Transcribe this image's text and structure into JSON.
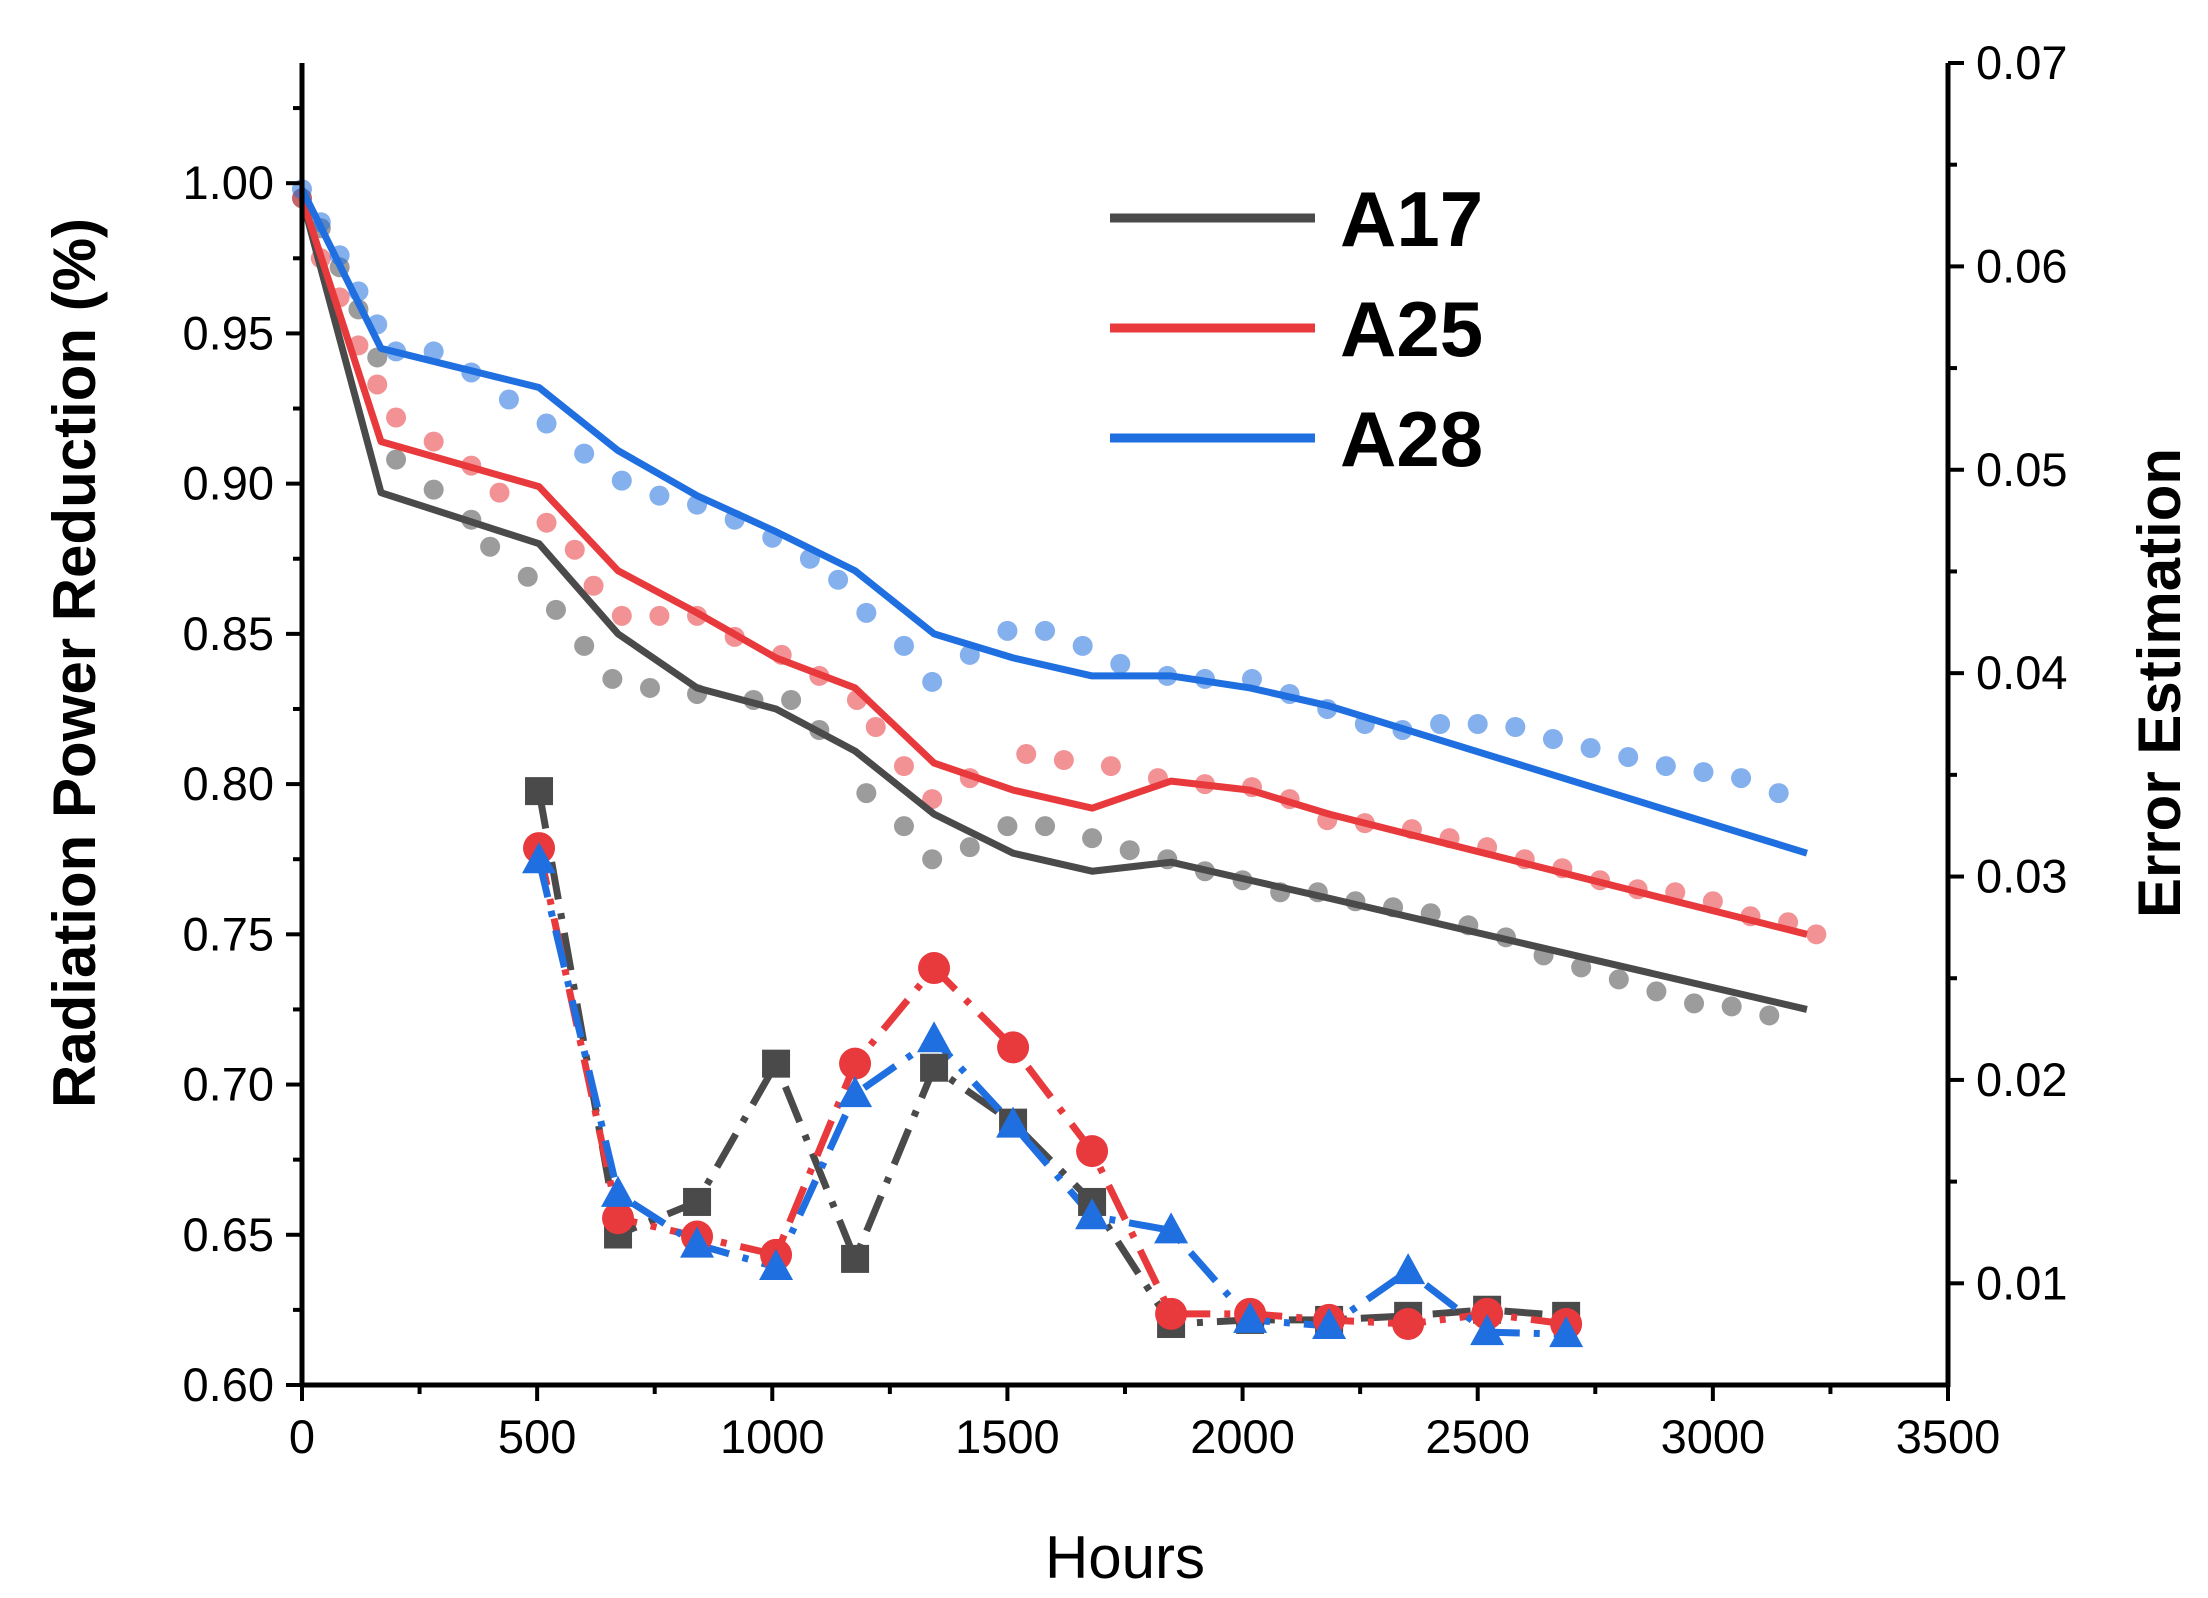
{
  "chart_data": {
    "type": "line",
    "title": "",
    "xlabel": "Hours",
    "ylabel": "Radiation Power Reduction (%)",
    "y2label": "Error Estimation",
    "xlim": [
      0,
      3500
    ],
    "ylim": [
      0.6,
      1.04
    ],
    "y2lim": [
      0.005,
      0.07
    ],
    "x_ticks": [
      "0",
      "500",
      "1000",
      "1500",
      "2000",
      "2500",
      "3000",
      "3500"
    ],
    "y_ticks": [
      "0.60",
      "0.65",
      "0.70",
      "0.75",
      "0.80",
      "0.85",
      "0.90",
      "0.95",
      "1.00"
    ],
    "y2_ticks": [
      "0.01",
      "0.02",
      "0.03",
      "0.04",
      "0.05",
      "0.06",
      "0.07"
    ],
    "legend": {
      "placement": "top-center",
      "entries": [
        {
          "label": "A17",
          "color": "#4a4a4a"
        },
        {
          "label": "A25",
          "color": "#e8393c"
        },
        {
          "label": "A28",
          "color": "#1f6fe0"
        }
      ]
    },
    "fit_series": [
      {
        "name": "A17",
        "color": "#4a4a4a",
        "x": [
          0,
          168,
          504,
          672,
          840,
          1008,
          1176,
          1344,
          1512,
          1680,
          1848,
          2016,
          2184,
          3200
        ],
        "y": [
          0.995,
          0.897,
          0.88,
          0.85,
          0.832,
          0.825,
          0.811,
          0.79,
          0.777,
          0.771,
          0.774,
          0.768,
          0.762,
          0.725
        ]
      },
      {
        "name": "A25",
        "color": "#e8393c",
        "x": [
          0,
          168,
          504,
          672,
          840,
          1008,
          1176,
          1344,
          1512,
          1680,
          1848,
          2016,
          2184,
          3200
        ],
        "y": [
          0.995,
          0.914,
          0.899,
          0.871,
          0.857,
          0.842,
          0.832,
          0.807,
          0.798,
          0.792,
          0.801,
          0.798,
          0.79,
          0.75
        ]
      },
      {
        "name": "A28",
        "color": "#1f6fe0",
        "x": [
          0,
          168,
          504,
          672,
          840,
          1008,
          1176,
          1344,
          1512,
          1680,
          1848,
          2016,
          2184,
          3200
        ],
        "y": [
          0.998,
          0.945,
          0.932,
          0.911,
          0.896,
          0.884,
          0.871,
          0.85,
          0.842,
          0.836,
          0.836,
          0.832,
          0.826,
          0.777
        ]
      }
    ],
    "measured_series": [
      {
        "name": "A17",
        "color": "#4a4a4a",
        "x": [
          0,
          40,
          80,
          120,
          160,
          200,
          280,
          360,
          400,
          480,
          540,
          600,
          660,
          740,
          840,
          960,
          1040,
          1100,
          1200,
          1280,
          1340,
          1420,
          1500,
          1580,
          1680,
          1760,
          1840,
          1920,
          2000,
          2080,
          2160,
          2240,
          2320,
          2400,
          2480,
          2560,
          2640,
          2720,
          2800,
          2880,
          2960,
          3040,
          3120
        ],
        "y": [
          0.995,
          0.985,
          0.972,
          0.958,
          0.942,
          0.908,
          0.898,
          0.888,
          0.879,
          0.869,
          0.858,
          0.846,
          0.835,
          0.832,
          0.83,
          0.828,
          0.828,
          0.818,
          0.797,
          0.786,
          0.775,
          0.779,
          0.786,
          0.786,
          0.782,
          0.778,
          0.775,
          0.771,
          0.768,
          0.764,
          0.764,
          0.761,
          0.759,
          0.757,
          0.753,
          0.749,
          0.743,
          0.739,
          0.735,
          0.731,
          0.727,
          0.726,
          0.723
        ]
      },
      {
        "name": "A25",
        "color": "#e8393c",
        "x": [
          0,
          40,
          80,
          120,
          160,
          200,
          280,
          360,
          420,
          520,
          580,
          620,
          680,
          760,
          840,
          920,
          1020,
          1100,
          1180,
          1220,
          1280,
          1340,
          1420,
          1540,
          1620,
          1720,
          1820,
          1920,
          2020,
          2100,
          2180,
          2260,
          2360,
          2440,
          2520,
          2600,
          2680,
          2760,
          2840,
          2920,
          3000,
          3080,
          3160,
          3220
        ],
        "y": [
          0.995,
          0.975,
          0.962,
          0.946,
          0.933,
          0.922,
          0.914,
          0.906,
          0.897,
          0.887,
          0.878,
          0.866,
          0.856,
          0.856,
          0.856,
          0.849,
          0.843,
          0.836,
          0.828,
          0.819,
          0.806,
          0.795,
          0.802,
          0.81,
          0.808,
          0.806,
          0.802,
          0.8,
          0.799,
          0.795,
          0.788,
          0.787,
          0.785,
          0.782,
          0.779,
          0.775,
          0.772,
          0.768,
          0.765,
          0.764,
          0.761,
          0.756,
          0.754,
          0.75
        ]
      },
      {
        "name": "A28",
        "color": "#1f6fe0",
        "x": [
          0,
          40,
          80,
          120,
          160,
          200,
          280,
          360,
          440,
          520,
          600,
          680,
          760,
          840,
          920,
          1000,
          1080,
          1140,
          1200,
          1280,
          1340,
          1420,
          1500,
          1580,
          1660,
          1740,
          1840,
          1920,
          2020,
          2100,
          2180,
          2260,
          2340,
          2420,
          2500,
          2580,
          2660,
          2740,
          2820,
          2900,
          2980,
          3060,
          3140
        ],
        "y": [
          0.998,
          0.987,
          0.976,
          0.964,
          0.953,
          0.944,
          0.944,
          0.937,
          0.928,
          0.92,
          0.91,
          0.901,
          0.896,
          0.893,
          0.888,
          0.882,
          0.875,
          0.868,
          0.857,
          0.846,
          0.834,
          0.843,
          0.851,
          0.851,
          0.846,
          0.84,
          0.836,
          0.835,
          0.835,
          0.83,
          0.825,
          0.82,
          0.818,
          0.82,
          0.82,
          0.819,
          0.815,
          0.812,
          0.809,
          0.806,
          0.804,
          0.802,
          0.797
        ]
      }
    ],
    "error_series": [
      {
        "name": "A17",
        "color": "#4a4a4a",
        "marker": "square",
        "x": [
          504,
          672,
          840,
          1008,
          1176,
          1344,
          1512,
          1680,
          1848,
          2016,
          2184,
          2352,
          2520,
          2688
        ],
        "y": [
          0.0342,
          0.0124,
          0.014,
          0.0208,
          0.0112,
          0.0206,
          0.0179,
          0.014,
          0.008,
          0.0082,
          0.0082,
          0.0084,
          0.0087,
          0.0084
        ]
      },
      {
        "name": "A25",
        "color": "#e8393c",
        "marker": "circle",
        "x": [
          504,
          672,
          840,
          1008,
          1176,
          1344,
          1512,
          1680,
          1848,
          2016,
          2184,
          2352,
          2520,
          2688
        ],
        "y": [
          0.0314,
          0.0132,
          0.0123,
          0.0114,
          0.0208,
          0.0255,
          0.0216,
          0.0165,
          0.0085,
          0.0085,
          0.0082,
          0.008,
          0.0085,
          0.008
        ]
      },
      {
        "name": "A28",
        "color": "#1f6fe0",
        "marker": "triangle",
        "x": [
          504,
          672,
          840,
          1008,
          1176,
          1344,
          1512,
          1680,
          1848,
          2016,
          2184,
          2352,
          2520,
          2688
        ],
        "y": [
          0.0308,
          0.0144,
          0.0119,
          0.0108,
          0.0193,
          0.022,
          0.0178,
          0.0133,
          0.0126,
          0.0082,
          0.0079,
          0.0106,
          0.0076,
          0.0075
        ]
      }
    ]
  }
}
